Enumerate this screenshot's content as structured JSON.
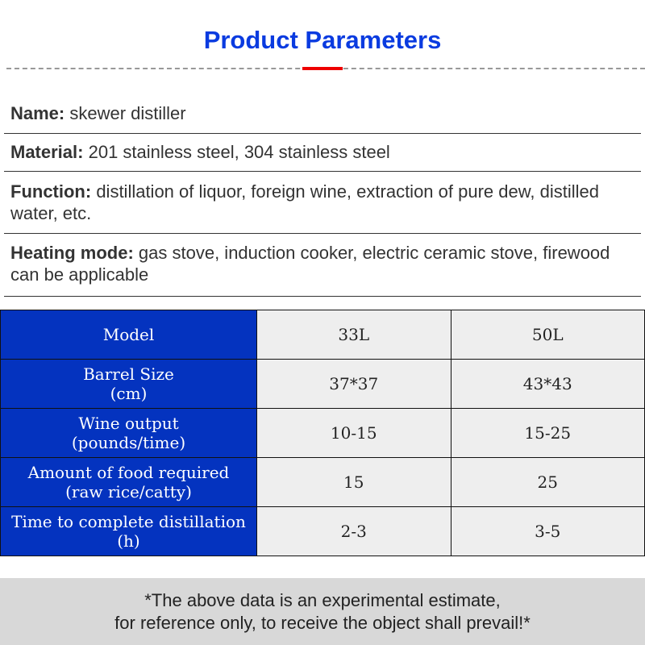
{
  "title": "Product Parameters",
  "info": [
    {
      "label": "Name:",
      "value": " skewer distiller"
    },
    {
      "label": "Material:",
      "value": " 201 stainless steel, 304 stainless steel"
    },
    {
      "label": "Function:",
      "value": " distillation of liquor, foreign wine, extraction of pure dew, distilled water, etc."
    },
    {
      "label": "Heating mode:",
      "value": " gas stove, induction cooker, electric ceramic stove, firewood can be applicable"
    }
  ],
  "table": {
    "rows": [
      {
        "h1": "Model",
        "h2": "",
        "v1": "33L",
        "v2": "50L"
      },
      {
        "h1": "Barrel Size",
        "h2": "(cm)",
        "v1": "37*37",
        "v2": "43*43"
      },
      {
        "h1": "Wine output",
        "h2": "(pounds/time)",
        "v1": "10-15",
        "v2": "15-25"
      },
      {
        "h1": "Amount of food required",
        "h2": "(raw rice/catty)",
        "v1": "15",
        "v2": "25"
      },
      {
        "h1": "Time to complete distillation",
        "h2": "(h)",
        "v1": "2-3",
        "v2": "3-5"
      }
    ]
  },
  "footer": {
    "line1": "*The above data is an experimental estimate,",
    "line2": "for reference only, to receive the object shall prevail!*"
  },
  "colors": {
    "title": "#0a3be0",
    "header_cell": "#0433bf",
    "accent": "#ee0000"
  }
}
